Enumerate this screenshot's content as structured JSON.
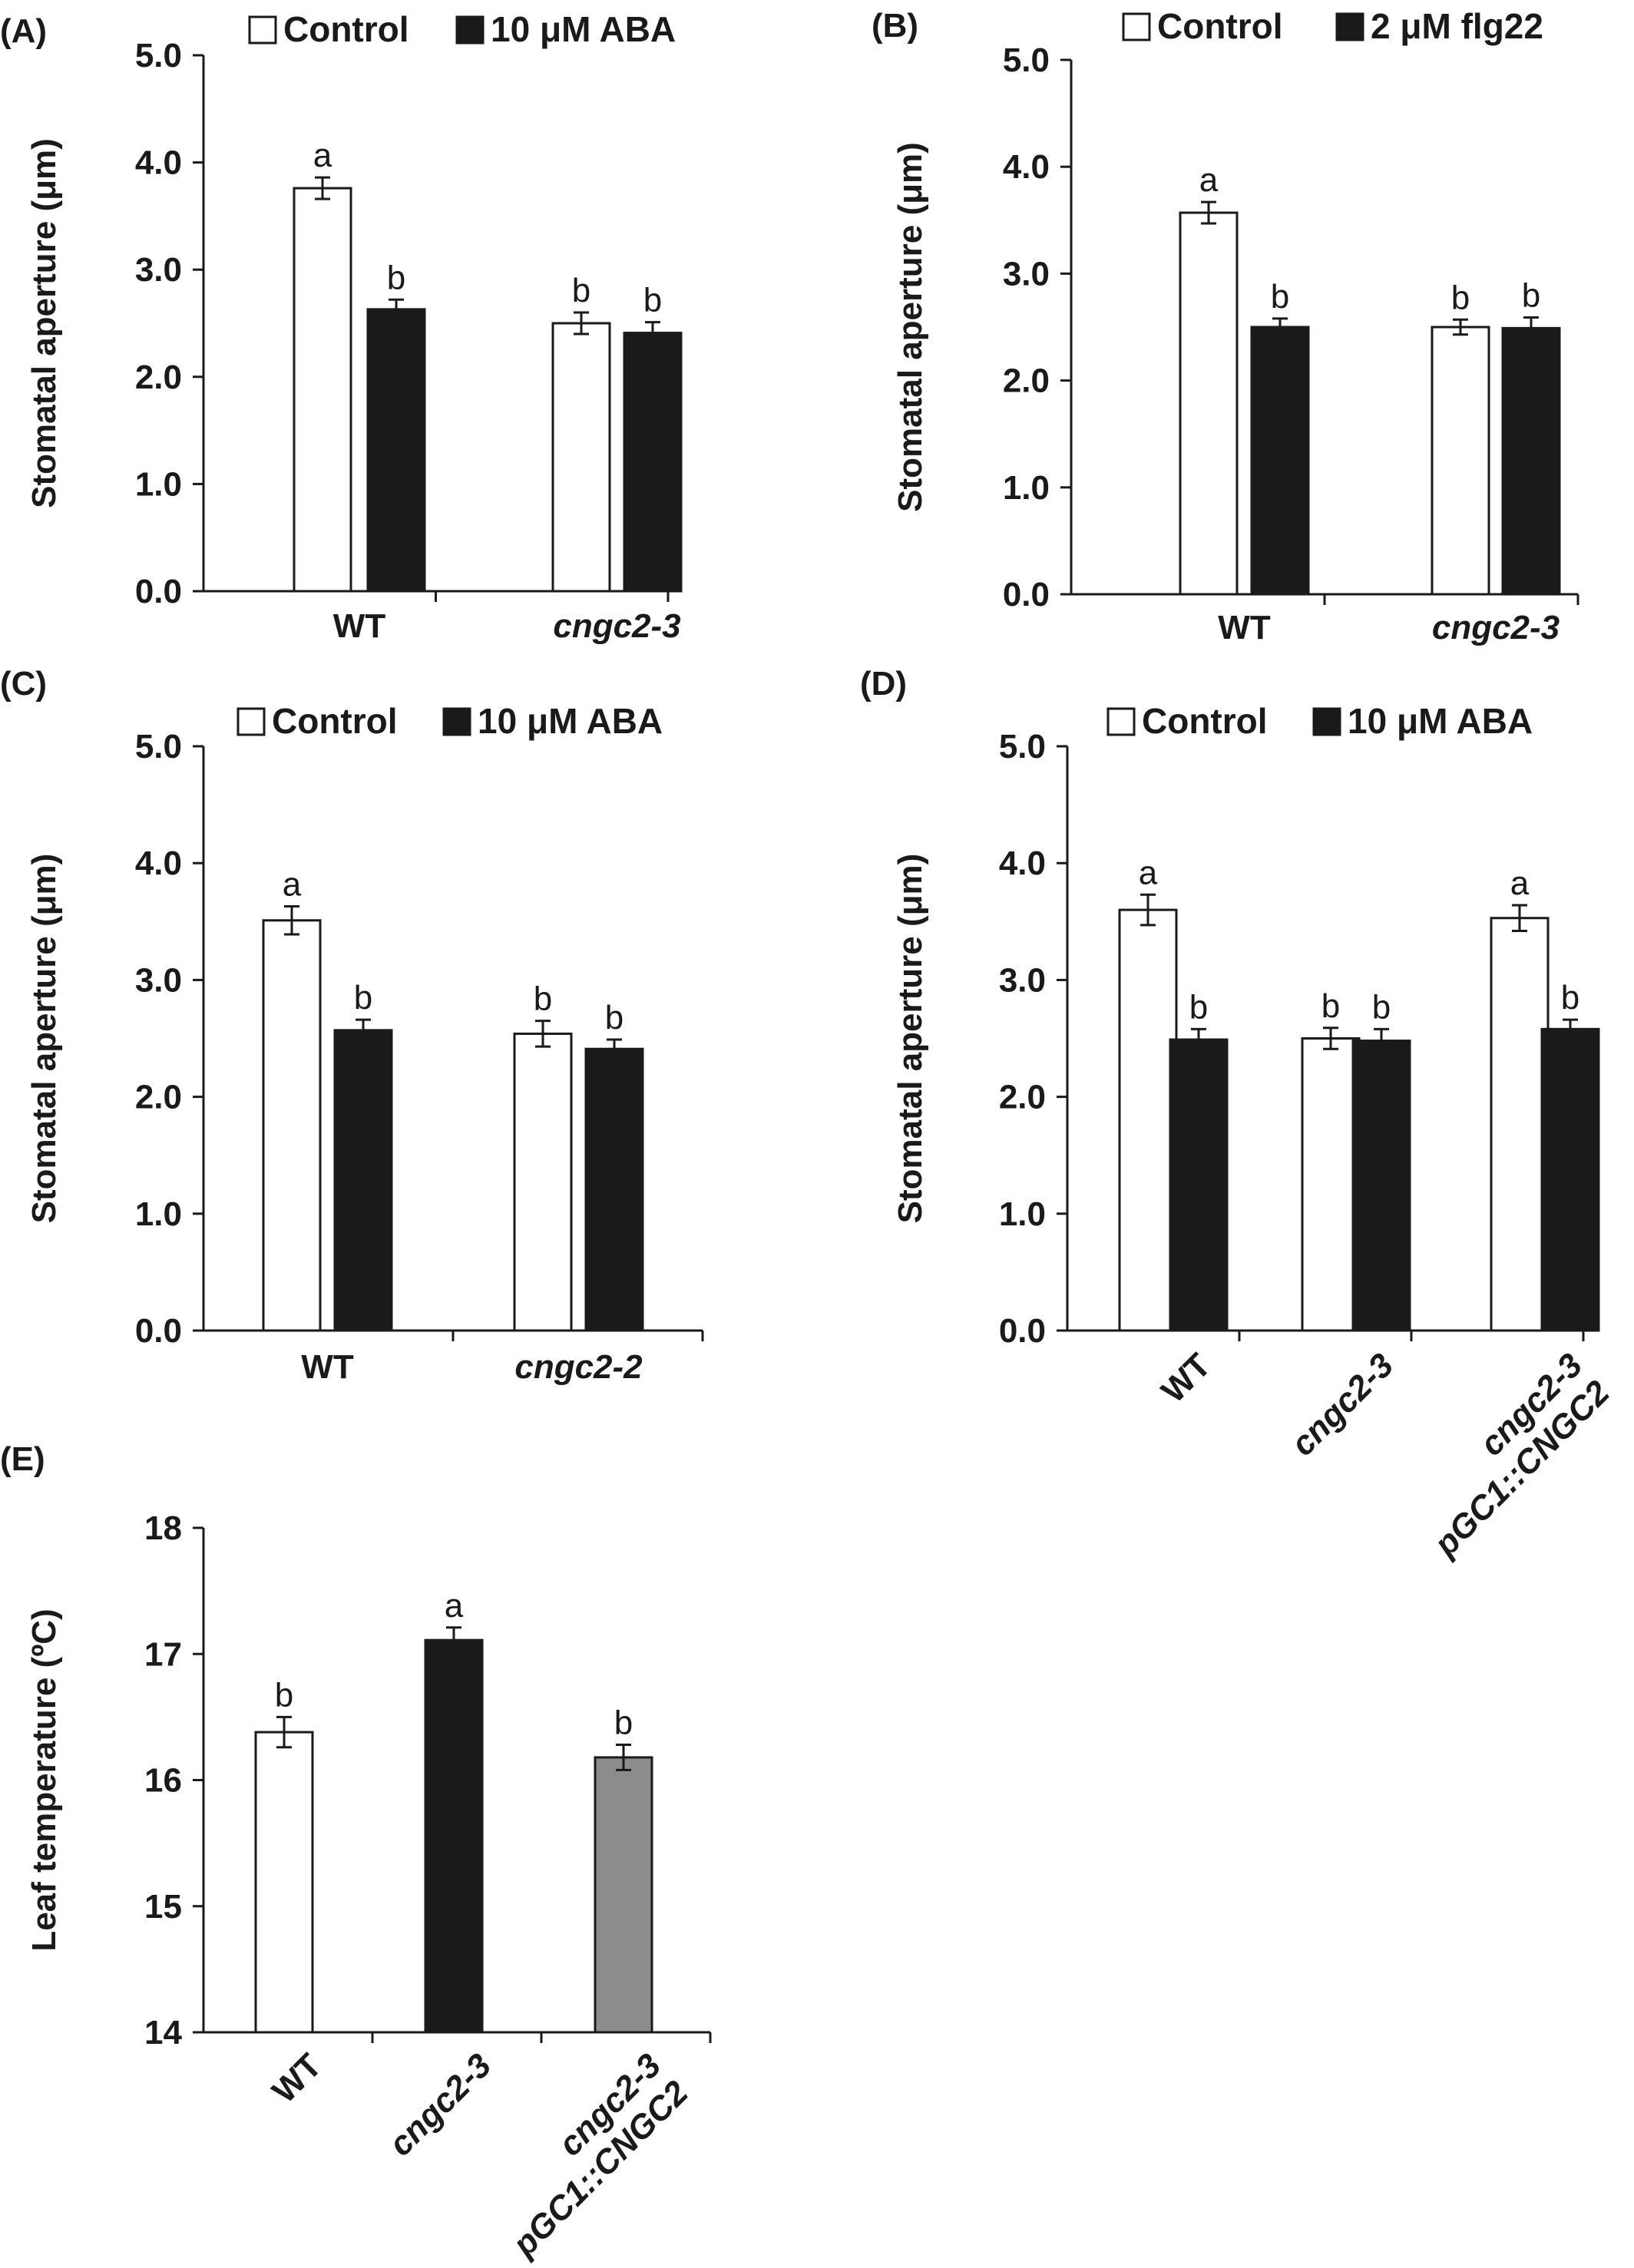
{
  "colors": {
    "control": "#ffffff",
    "treatment": "#1a1a1a",
    "complemented": "#8c8c8c",
    "outline": "#1a1a1a"
  },
  "chart_data": [
    {
      "panel": "(A)",
      "type": "bar",
      "ylabel": "Stomatal aperture (μm)",
      "ylim": [
        0,
        5
      ],
      "yticks": [
        "0.0",
        "1.0",
        "2.0",
        "3.0",
        "4.0",
        "5.0"
      ],
      "categories": [
        "WT",
        "cngc2-3"
      ],
      "italic_categories": [
        false,
        true
      ],
      "series": [
        {
          "name": "Control",
          "color": "#ffffff",
          "values": [
            3.76,
            2.5
          ],
          "errors": [
            0.1,
            0.1
          ],
          "letters": [
            "a",
            "b"
          ]
        },
        {
          "name": "10 μM ABA",
          "color": "#1a1a1a",
          "values": [
            2.63,
            2.41
          ],
          "errors": [
            0.09,
            0.1
          ],
          "letters": [
            "b",
            "b"
          ]
        }
      ],
      "legend": "top"
    },
    {
      "panel": "(B)",
      "type": "bar",
      "ylabel": "Stomatal aperture (μm)",
      "ylim": [
        0,
        5
      ],
      "yticks": [
        "0.0",
        "1.0",
        "2.0",
        "3.0",
        "4.0",
        "5.0"
      ],
      "categories": [
        "WT",
        "cngc2-3"
      ],
      "italic_categories": [
        false,
        true
      ],
      "series": [
        {
          "name": "Control",
          "color": "#ffffff",
          "values": [
            3.57,
            2.5
          ],
          "errors": [
            0.1,
            0.07
          ],
          "letters": [
            "a",
            "b"
          ]
        },
        {
          "name": "2 μM flg22",
          "color": "#1a1a1a",
          "values": [
            2.5,
            2.49
          ],
          "errors": [
            0.08,
            0.1
          ],
          "letters": [
            "b",
            "b"
          ]
        }
      ],
      "legend": "top"
    },
    {
      "panel": "(C)",
      "type": "bar",
      "ylabel": "Stomatal aperture (μm)",
      "ylim": [
        0,
        5
      ],
      "yticks": [
        "0.0",
        "1.0",
        "2.0",
        "3.0",
        "4.0",
        "5.0"
      ],
      "categories": [
        "WT",
        "cngc2-2"
      ],
      "italic_categories": [
        false,
        true
      ],
      "series": [
        {
          "name": "Control",
          "color": "#ffffff",
          "values": [
            3.51,
            2.54
          ],
          "errors": [
            0.12,
            0.11
          ],
          "letters": [
            "a",
            "b"
          ]
        },
        {
          "name": "10 μM ABA",
          "color": "#1a1a1a",
          "values": [
            2.57,
            2.41
          ],
          "errors": [
            0.09,
            0.08
          ],
          "letters": [
            "b",
            "b"
          ]
        }
      ],
      "legend": "top"
    },
    {
      "panel": "(D)",
      "type": "bar",
      "ylabel": "Stomatal aperture (μm)",
      "ylim": [
        0,
        5
      ],
      "yticks": [
        "0.0",
        "1.0",
        "2.0",
        "3.0",
        "4.0",
        "5.0"
      ],
      "categories": [
        "WT",
        "cngc2-3",
        "cngc2-3\npGC1::CNGC2"
      ],
      "italic_categories": [
        false,
        true,
        true
      ],
      "series": [
        {
          "name": "Control",
          "color": "#ffffff",
          "values": [
            3.6,
            2.5,
            3.53
          ],
          "errors": [
            0.13,
            0.09,
            0.11
          ],
          "letters": [
            "a",
            "b",
            "a"
          ]
        },
        {
          "name": "10 μM ABA",
          "color": "#1a1a1a",
          "values": [
            2.49,
            2.48,
            2.58
          ],
          "errors": [
            0.09,
            0.1,
            0.08
          ],
          "letters": [
            "b",
            "b",
            "b"
          ]
        }
      ],
      "legend": "top"
    },
    {
      "panel": "(E)",
      "type": "bar",
      "ylabel": "Leaf temperature (ºC)",
      "ylim": [
        14,
        18
      ],
      "yticks": [
        "14",
        "15",
        "16",
        "17",
        "18"
      ],
      "categories": [
        "WT",
        "cngc2-3",
        "cngc2-3\npGC1::CNGC2"
      ],
      "italic_categories": [
        false,
        true,
        true
      ],
      "series": [
        {
          "name": "",
          "colors": [
            "#ffffff",
            "#1a1a1a",
            "#8c8c8c"
          ],
          "values": [
            16.38,
            17.11,
            16.18
          ],
          "errors": [
            0.12,
            0.1,
            0.1
          ],
          "letters": [
            "b",
            "a",
            "b"
          ]
        }
      ],
      "legend": "none"
    }
  ]
}
